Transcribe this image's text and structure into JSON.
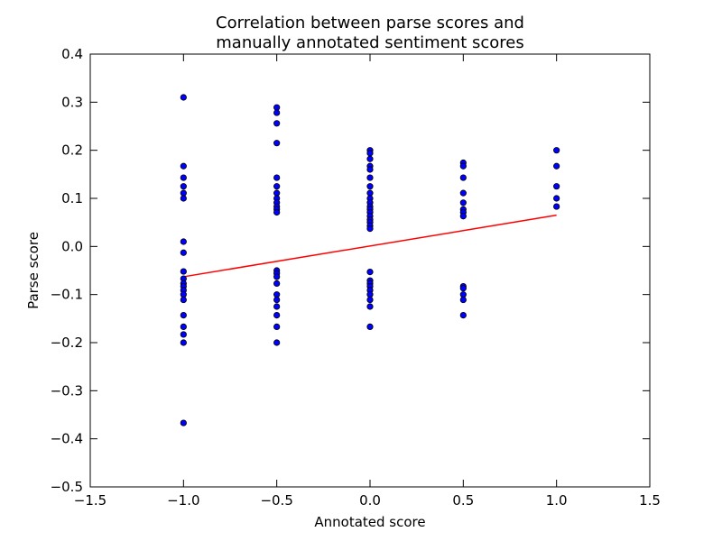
{
  "chart_data": {
    "type": "scatter",
    "title": [
      "Correlation between parse scores and",
      "manually annotated sentiment scores"
    ],
    "xlabel": "Annotated score",
    "ylabel": "Parse score",
    "xlim": [
      -1.5,
      1.5
    ],
    "ylim": [
      -0.5,
      0.4
    ],
    "xticks": [
      -1.5,
      -1.0,
      -0.5,
      0.0,
      0.5,
      1.0,
      1.5
    ],
    "xtick_labels": [
      "−1.5",
      "−1.0",
      "−0.5",
      "0.0",
      "0.5",
      "1.0",
      "1.5"
    ],
    "yticks": [
      -0.5,
      -0.4,
      -0.3,
      -0.2,
      -0.1,
      0.0,
      0.1,
      0.2,
      0.3,
      0.4
    ],
    "ytick_labels": [
      "−0.5",
      "−0.4",
      "−0.3",
      "−0.2",
      "−0.1",
      "0.0",
      "0.1",
      "0.2",
      "0.3",
      "0.4"
    ],
    "grid": false,
    "point_color": "#0000ff",
    "fit_line_color": "#ff0000",
    "points": [
      {
        "x": -1.0,
        "y": 0.31
      },
      {
        "x": -1.0,
        "y": 0.167
      },
      {
        "x": -1.0,
        "y": 0.143
      },
      {
        "x": -1.0,
        "y": 0.125
      },
      {
        "x": -1.0,
        "y": 0.111
      },
      {
        "x": -1.0,
        "y": 0.1
      },
      {
        "x": -1.0,
        "y": 0.01
      },
      {
        "x": -1.0,
        "y": -0.013
      },
      {
        "x": -1.0,
        "y": -0.052
      },
      {
        "x": -1.0,
        "y": -0.067
      },
      {
        "x": -1.0,
        "y": -0.077
      },
      {
        "x": -1.0,
        "y": -0.083
      },
      {
        "x": -1.0,
        "y": -0.091
      },
      {
        "x": -1.0,
        "y": -0.1
      },
      {
        "x": -1.0,
        "y": -0.111
      },
      {
        "x": -1.0,
        "y": -0.143
      },
      {
        "x": -1.0,
        "y": -0.167
      },
      {
        "x": -1.0,
        "y": -0.183
      },
      {
        "x": -1.0,
        "y": -0.2
      },
      {
        "x": -1.0,
        "y": -0.367
      },
      {
        "x": -0.5,
        "y": 0.289
      },
      {
        "x": -0.5,
        "y": 0.278
      },
      {
        "x": -0.5,
        "y": 0.256
      },
      {
        "x": -0.5,
        "y": 0.215
      },
      {
        "x": -0.5,
        "y": 0.143
      },
      {
        "x": -0.5,
        "y": 0.125
      },
      {
        "x": -0.5,
        "y": 0.111
      },
      {
        "x": -0.5,
        "y": 0.1
      },
      {
        "x": -0.5,
        "y": 0.091
      },
      {
        "x": -0.5,
        "y": 0.083
      },
      {
        "x": -0.5,
        "y": 0.077
      },
      {
        "x": -0.5,
        "y": 0.071
      },
      {
        "x": -0.5,
        "y": -0.05
      },
      {
        "x": -0.5,
        "y": -0.056
      },
      {
        "x": -0.5,
        "y": -0.063
      },
      {
        "x": -0.5,
        "y": -0.077
      },
      {
        "x": -0.5,
        "y": -0.1
      },
      {
        "x": -0.5,
        "y": -0.111
      },
      {
        "x": -0.5,
        "y": -0.125
      },
      {
        "x": -0.5,
        "y": -0.143
      },
      {
        "x": -0.5,
        "y": -0.167
      },
      {
        "x": -0.5,
        "y": -0.2
      },
      {
        "x": 0.0,
        "y": 0.2
      },
      {
        "x": 0.0,
        "y": 0.194
      },
      {
        "x": 0.0,
        "y": 0.182
      },
      {
        "x": 0.0,
        "y": 0.167
      },
      {
        "x": 0.0,
        "y": 0.16
      },
      {
        "x": 0.0,
        "y": 0.143
      },
      {
        "x": 0.0,
        "y": 0.125
      },
      {
        "x": 0.0,
        "y": 0.111
      },
      {
        "x": 0.0,
        "y": 0.1
      },
      {
        "x": 0.0,
        "y": 0.091
      },
      {
        "x": 0.0,
        "y": 0.083
      },
      {
        "x": 0.0,
        "y": 0.077
      },
      {
        "x": 0.0,
        "y": 0.071
      },
      {
        "x": 0.0,
        "y": 0.063
      },
      {
        "x": 0.0,
        "y": 0.056
      },
      {
        "x": 0.0,
        "y": 0.05
      },
      {
        "x": 0.0,
        "y": 0.043
      },
      {
        "x": 0.0,
        "y": 0.037
      },
      {
        "x": 0.0,
        "y": -0.053
      },
      {
        "x": 0.0,
        "y": -0.071
      },
      {
        "x": 0.0,
        "y": -0.077
      },
      {
        "x": 0.0,
        "y": -0.083
      },
      {
        "x": 0.0,
        "y": -0.091
      },
      {
        "x": 0.0,
        "y": -0.1
      },
      {
        "x": 0.0,
        "y": -0.111
      },
      {
        "x": 0.0,
        "y": -0.125
      },
      {
        "x": 0.0,
        "y": -0.167
      },
      {
        "x": 0.5,
        "y": 0.174
      },
      {
        "x": 0.5,
        "y": 0.167
      },
      {
        "x": 0.5,
        "y": 0.143
      },
      {
        "x": 0.5,
        "y": 0.111
      },
      {
        "x": 0.5,
        "y": 0.091
      },
      {
        "x": 0.5,
        "y": 0.077
      },
      {
        "x": 0.5,
        "y": 0.071
      },
      {
        "x": 0.5,
        "y": 0.063
      },
      {
        "x": 0.5,
        "y": -0.083
      },
      {
        "x": 0.5,
        "y": -0.087
      },
      {
        "x": 0.5,
        "y": -0.1
      },
      {
        "x": 0.5,
        "y": -0.111
      },
      {
        "x": 0.5,
        "y": -0.143
      },
      {
        "x": 1.0,
        "y": 0.2
      },
      {
        "x": 1.0,
        "y": 0.167
      },
      {
        "x": 1.0,
        "y": 0.125
      },
      {
        "x": 1.0,
        "y": 0.1
      },
      {
        "x": 1.0,
        "y": 0.083
      }
    ],
    "fit_line": [
      {
        "x": -1.0,
        "y": -0.063
      },
      {
        "x": 1.0,
        "y": 0.065
      }
    ]
  }
}
